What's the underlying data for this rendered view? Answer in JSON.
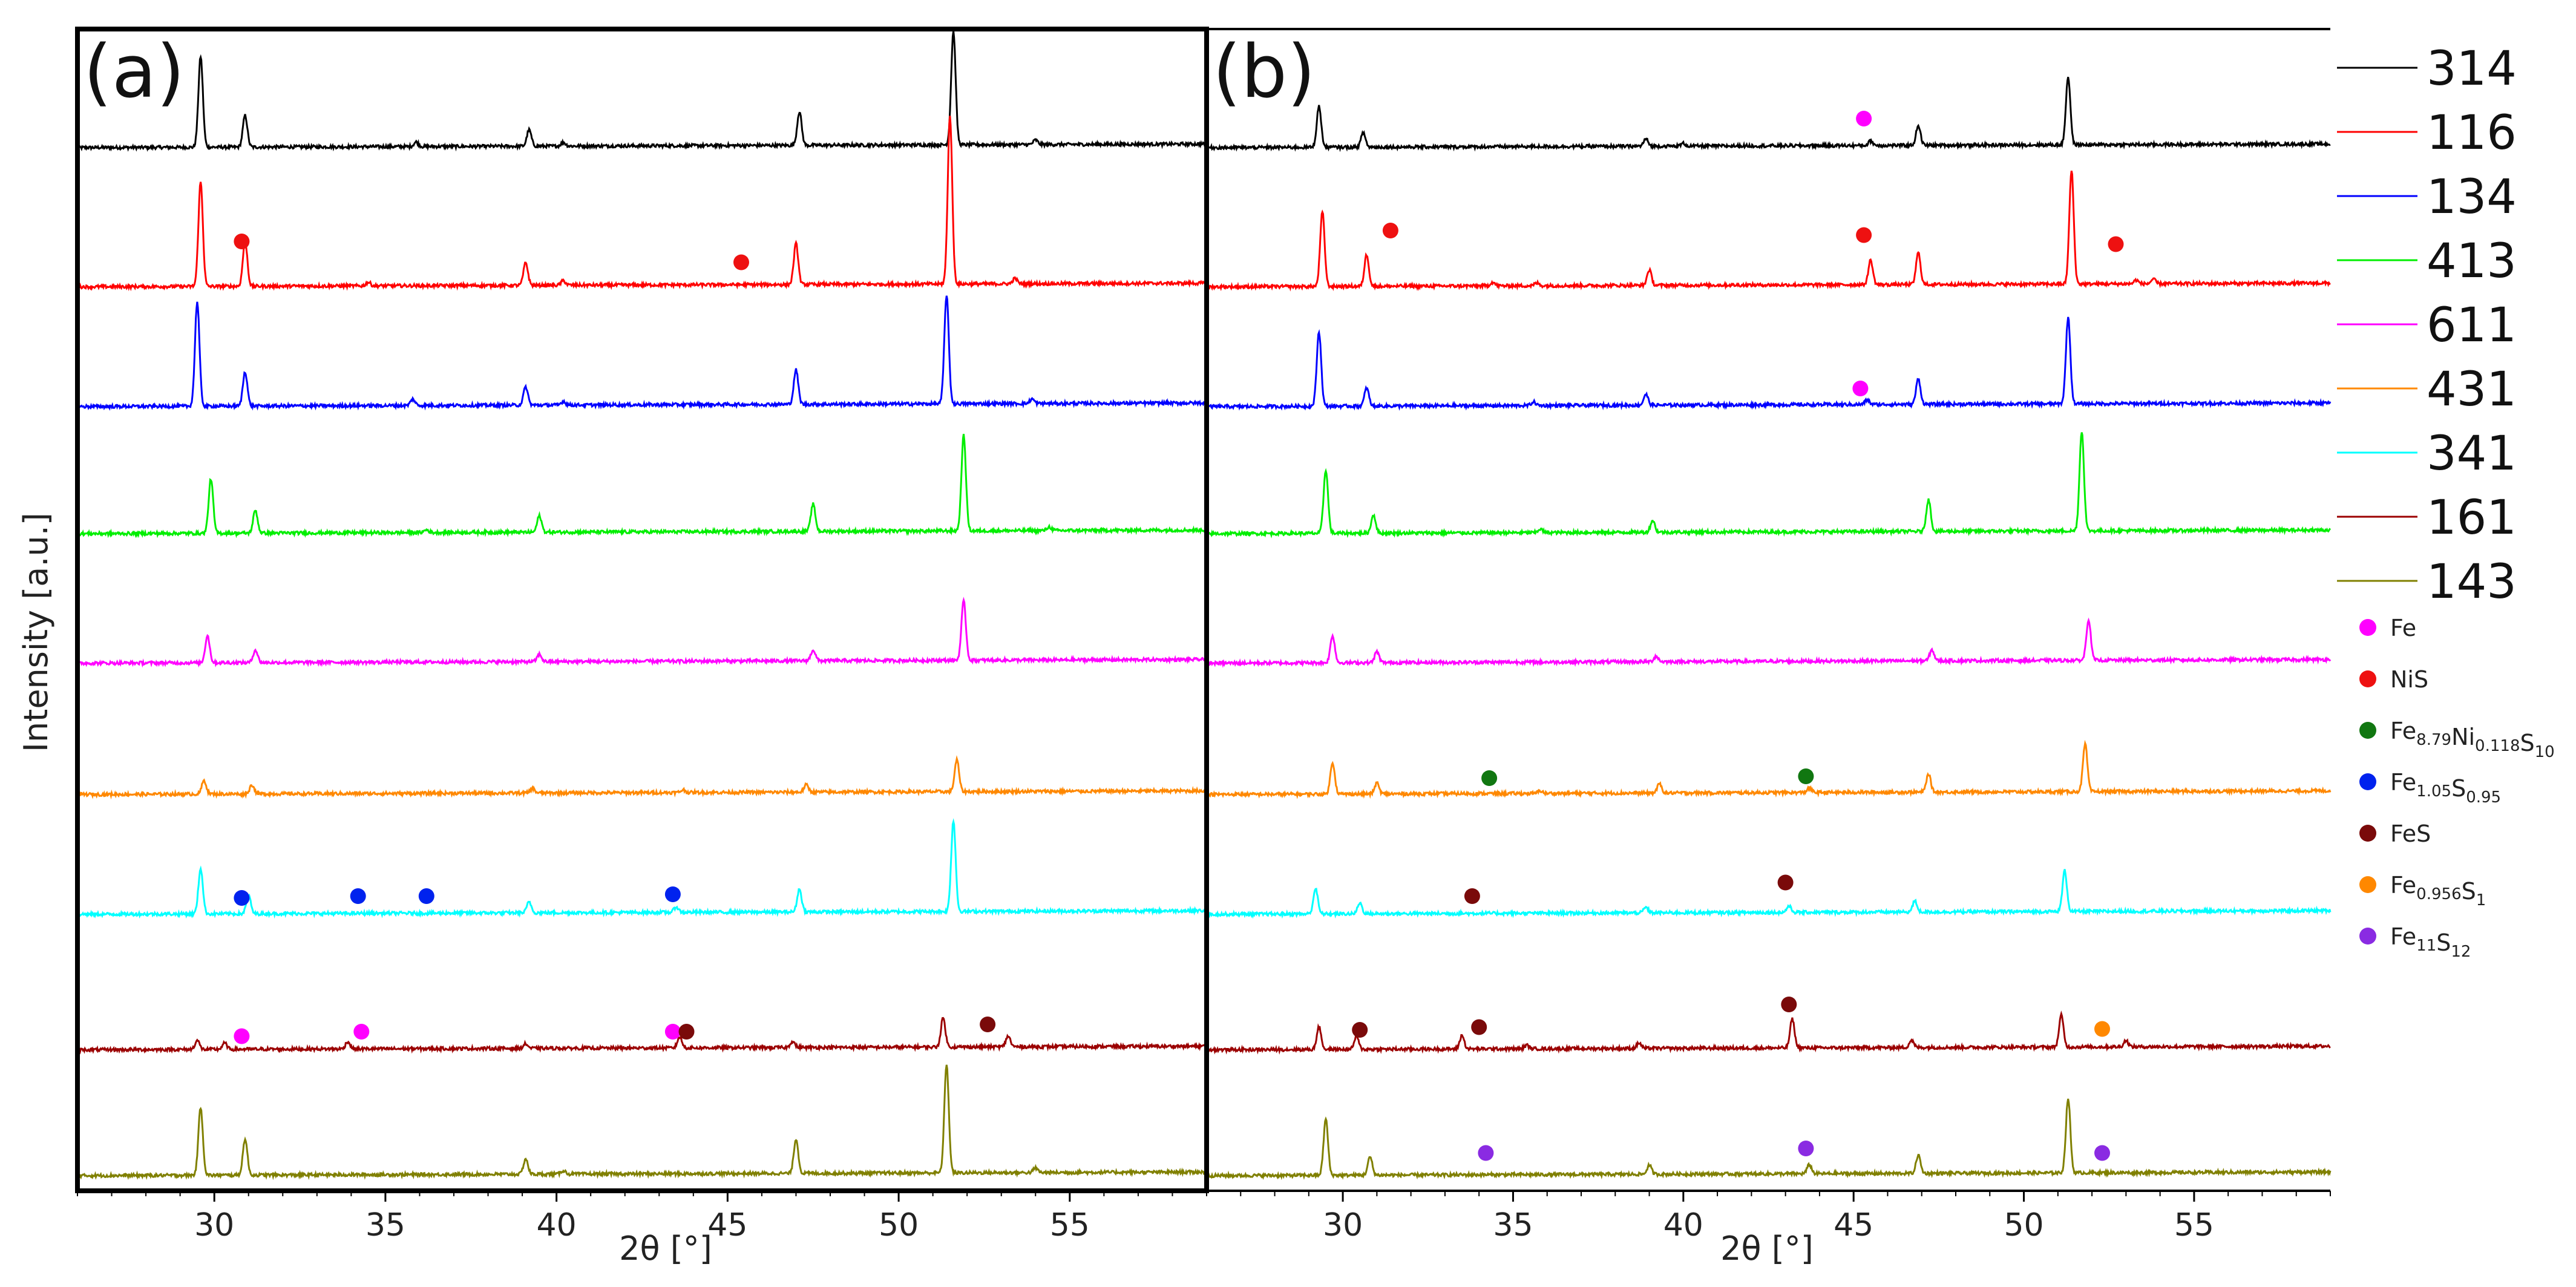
{
  "chart_data": {
    "type": "line",
    "title": "",
    "xlabel": "2θ [°]",
    "ylabel": "Intensity [a.u.]",
    "xlim": [
      26,
      59
    ],
    "xticks": [
      30,
      35,
      40,
      45,
      50,
      55
    ],
    "grid": false,
    "legend_placement": "right",
    "panels": [
      {
        "label": "(a)",
        "series": [
          {
            "name": "314",
            "color": "#000000",
            "peaks": [
              [
                29.6,
                1.0
              ],
              [
                30.9,
                0.35
              ],
              [
                35.9,
                0.05
              ],
              [
                39.2,
                0.18
              ],
              [
                40.2,
                0.04
              ],
              [
                47.1,
                0.37
              ],
              [
                51.6,
                1.25
              ],
              [
                54.0,
                0.05
              ]
            ],
            "markers": []
          },
          {
            "name": "116",
            "color": "#ff0000",
            "peaks": [
              [
                29.6,
                1.15
              ],
              [
                30.9,
                0.5
              ],
              [
                34.5,
                0.04
              ],
              [
                39.1,
                0.25
              ],
              [
                40.2,
                0.05
              ],
              [
                47.0,
                0.45
              ],
              [
                51.5,
                1.85
              ],
              [
                53.4,
                0.06
              ]
            ],
            "markers": [
              {
                "x": 30.8,
                "phase": "NiS",
                "height": 0.5
              },
              {
                "x": 45.4,
                "phase": "NiS",
                "height": 0.27
              }
            ]
          },
          {
            "name": "134",
            "color": "#0000ff",
            "peaks": [
              [
                29.5,
                1.15
              ],
              [
                30.9,
                0.38
              ],
              [
                35.8,
                0.07
              ],
              [
                39.1,
                0.2
              ],
              [
                40.2,
                0.04
              ],
              [
                47.0,
                0.38
              ],
              [
                51.4,
                1.2
              ],
              [
                53.9,
                0.05
              ]
            ],
            "markers": []
          },
          {
            "name": "413",
            "color": "#00ee00",
            "peaks": [
              [
                29.9,
                0.6
              ],
              [
                31.2,
                0.25
              ],
              [
                36.2,
                0.03
              ],
              [
                39.5,
                0.18
              ],
              [
                47.5,
                0.3
              ],
              [
                51.9,
                1.05
              ],
              [
                54.4,
                0.04
              ]
            ],
            "markers": []
          },
          {
            "name": "611",
            "color": "#ff00ff",
            "peaks": [
              [
                29.8,
                0.3
              ],
              [
                31.2,
                0.14
              ],
              [
                39.5,
                0.08
              ],
              [
                47.5,
                0.12
              ],
              [
                51.9,
                0.65
              ]
            ],
            "markers": []
          },
          {
            "name": "431",
            "color": "#ff8800",
            "peaks": [
              [
                29.7,
                0.15
              ],
              [
                31.1,
                0.1
              ],
              [
                39.3,
                0.05
              ],
              [
                43.7,
                0.03
              ],
              [
                47.3,
                0.08
              ],
              [
                51.7,
                0.35
              ]
            ],
            "markers": []
          },
          {
            "name": "341",
            "color": "#00ffff",
            "peaks": [
              [
                29.6,
                0.5
              ],
              [
                31.0,
                0.2
              ],
              [
                39.2,
                0.12
              ],
              [
                43.5,
                0.06
              ],
              [
                47.1,
                0.25
              ],
              [
                51.6,
                1.0
              ]
            ],
            "markers": [
              {
                "x": 30.8,
                "phase": "Fe1.05S0.95",
                "height": 0.18
              },
              {
                "x": 34.2,
                "phase": "Fe1.05S0.95",
                "height": 0.2
              },
              {
                "x": 36.2,
                "phase": "Fe1.05S0.95",
                "height": 0.2
              },
              {
                "x": 43.4,
                "phase": "Fe1.05S0.95",
                "height": 0.22
              }
            ]
          },
          {
            "name": "161",
            "color": "#9b0000",
            "peaks": [
              [
                29.5,
                0.1
              ],
              [
                30.3,
                0.07
              ],
              [
                33.9,
                0.08
              ],
              [
                39.1,
                0.05
              ],
              [
                43.6,
                0.12
              ],
              [
                46.9,
                0.07
              ],
              [
                51.3,
                0.32
              ],
              [
                53.2,
                0.12
              ]
            ],
            "markers": [
              {
                "x": 30.8,
                "phase": "Fe",
                "height": 0.15
              },
              {
                "x": 34.3,
                "phase": "Fe",
                "height": 0.2
              },
              {
                "x": 43.4,
                "phase": "Fe",
                "height": 0.2
              },
              {
                "x": 43.8,
                "phase": "FeS",
                "height": 0.2
              },
              {
                "x": 52.6,
                "phase": "FeS",
                "height": 0.28
              }
            ]
          },
          {
            "name": "143",
            "color": "#808000",
            "peaks": [
              [
                29.6,
                0.75
              ],
              [
                30.9,
                0.4
              ],
              [
                39.1,
                0.17
              ],
              [
                40.2,
                0.04
              ],
              [
                47.0,
                0.38
              ],
              [
                51.4,
                1.2
              ],
              [
                54.0,
                0.05
              ]
            ],
            "markers": []
          }
        ]
      },
      {
        "label": "(b)",
        "series": [
          {
            "name": "314",
            "color": "#000000",
            "peaks": [
              [
                29.3,
                0.45
              ],
              [
                30.6,
                0.16
              ],
              [
                38.9,
                0.08
              ],
              [
                40.0,
                0.03
              ],
              [
                45.5,
                0.05
              ],
              [
                46.9,
                0.22
              ],
              [
                51.3,
                0.75
              ]
            ],
            "markers": [
              {
                "x": 45.3,
                "phase": "Fe",
                "height": 0.32
              }
            ]
          },
          {
            "name": "116",
            "color": "#ff0000",
            "peaks": [
              [
                29.4,
                0.82
              ],
              [
                30.7,
                0.35
              ],
              [
                34.4,
                0.04
              ],
              [
                35.7,
                0.03
              ],
              [
                39.0,
                0.17
              ],
              [
                45.5,
                0.27
              ],
              [
                46.9,
                0.35
              ],
              [
                51.4,
                1.25
              ],
              [
                53.3,
                0.04
              ],
              [
                53.8,
                0.05
              ]
            ],
            "markers": [
              {
                "x": 31.4,
                "phase": "NiS",
                "height": 0.62
              },
              {
                "x": 45.3,
                "phase": "NiS",
                "height": 0.57
              },
              {
                "x": 52.7,
                "phase": "NiS",
                "height": 0.47
              }
            ]
          },
          {
            "name": "134",
            "color": "#0000ff",
            "peaks": [
              [
                29.3,
                0.82
              ],
              [
                30.7,
                0.2
              ],
              [
                35.6,
                0.04
              ],
              [
                38.9,
                0.12
              ],
              [
                45.4,
                0.05
              ],
              [
                46.9,
                0.28
              ],
              [
                51.3,
                0.95
              ]
            ],
            "markers": [
              {
                "x": 45.2,
                "phase": "Fe",
                "height": 0.2
              }
            ]
          },
          {
            "name": "413",
            "color": "#00ee00",
            "peaks": [
              [
                29.5,
                0.7
              ],
              [
                30.9,
                0.2
              ],
              [
                35.8,
                0.04
              ],
              [
                39.1,
                0.13
              ],
              [
                47.2,
                0.35
              ],
              [
                51.7,
                1.1
              ]
            ],
            "markers": []
          },
          {
            "name": "611",
            "color": "#ff00ff",
            "peaks": [
              [
                29.7,
                0.3
              ],
              [
                31.0,
                0.12
              ],
              [
                39.2,
                0.06
              ],
              [
                47.3,
                0.12
              ],
              [
                51.9,
                0.45
              ]
            ],
            "markers": []
          },
          {
            "name": "431",
            "color": "#ff8800",
            "peaks": [
              [
                29.7,
                0.35
              ],
              [
                31.0,
                0.12
              ],
              [
                35.8,
                0.03
              ],
              [
                39.3,
                0.1
              ],
              [
                43.7,
                0.05
              ],
              [
                47.2,
                0.2
              ],
              [
                51.8,
                0.52
              ]
            ],
            "markers": [
              {
                "x": 34.3,
                "phase": "Fe8.79Ni0.118S10",
                "height": 0.18
              },
              {
                "x": 43.6,
                "phase": "Fe8.79Ni0.118S10",
                "height": 0.2
              }
            ]
          },
          {
            "name": "341",
            "color": "#00ffff",
            "peaks": [
              [
                29.2,
                0.28
              ],
              [
                30.5,
                0.12
              ],
              [
                38.9,
                0.06
              ],
              [
                43.1,
                0.07
              ],
              [
                46.8,
                0.12
              ],
              [
                51.2,
                0.45
              ]
            ],
            "markers": [
              {
                "x": 33.8,
                "phase": "FeS",
                "height": 0.2
              },
              {
                "x": 43.0,
                "phase": "FeS",
                "height": 0.35
              }
            ]
          },
          {
            "name": "161",
            "color": "#9b0000",
            "peaks": [
              [
                29.3,
                0.25
              ],
              [
                30.4,
                0.14
              ],
              [
                33.5,
                0.15
              ],
              [
                35.4,
                0.04
              ],
              [
                38.7,
                0.06
              ],
              [
                43.2,
                0.32
              ],
              [
                46.7,
                0.08
              ],
              [
                51.1,
                0.35
              ],
              [
                53.0,
                0.07
              ]
            ],
            "markers": [
              {
                "x": 30.5,
                "phase": "FeS",
                "height": 0.22
              },
              {
                "x": 34.0,
                "phase": "FeS",
                "height": 0.25
              },
              {
                "x": 43.1,
                "phase": "FeS",
                "height": 0.5
              },
              {
                "x": 52.3,
                "phase": "Fe0.956S1",
                "height": 0.23
              }
            ]
          },
          {
            "name": "143",
            "color": "#808000",
            "peaks": [
              [
                29.5,
                0.62
              ],
              [
                30.8,
                0.2
              ],
              [
                39.0,
                0.1
              ],
              [
                43.7,
                0.1
              ],
              [
                46.9,
                0.2
              ],
              [
                51.3,
                0.82
              ]
            ],
            "markers": [
              {
                "x": 34.2,
                "phase": "Fe11S12",
                "height": 0.25
              },
              {
                "x": 43.6,
                "phase": "Fe11S12",
                "height": 0.3
              },
              {
                "x": 52.3,
                "phase": "Fe11S12",
                "height": 0.25
              }
            ]
          }
        ]
      }
    ],
    "sample_legend": [
      "314",
      "116",
      "134",
      "413",
      "611",
      "431",
      "341",
      "161",
      "143"
    ],
    "sample_colors": [
      "#000000",
      "#ff0000",
      "#0000ff",
      "#00ee00",
      "#ff00ff",
      "#ff8800",
      "#00ffff",
      "#9b0000",
      "#808000"
    ],
    "phase_legend": [
      {
        "key": "Fe",
        "color": "#ff00ff",
        "parts": [
          {
            "t": "Fe"
          }
        ]
      },
      {
        "key": "NiS",
        "color": "#ee1111",
        "parts": [
          {
            "t": "NiS"
          }
        ]
      },
      {
        "key": "Fe8.79Ni0.118S10",
        "color": "#117711",
        "parts": [
          {
            "t": "Fe"
          },
          {
            "t": "8.79",
            "sub": true
          },
          {
            "t": "Ni"
          },
          {
            "t": "0.118",
            "sub": true
          },
          {
            "t": "S"
          },
          {
            "t": "10",
            "sub": true
          }
        ]
      },
      {
        "key": "Fe1.05S0.95",
        "color": "#0022ee",
        "parts": [
          {
            "t": "Fe"
          },
          {
            "t": "1.05",
            "sub": true
          },
          {
            "t": "S"
          },
          {
            "t": "0.95",
            "sub": true
          }
        ]
      },
      {
        "key": "FeS",
        "color": "#7a0a0a",
        "parts": [
          {
            "t": "FeS"
          }
        ]
      },
      {
        "key": "Fe0.956S1",
        "color": "#ff8800",
        "parts": [
          {
            "t": "Fe"
          },
          {
            "t": "0.956",
            "sub": true
          },
          {
            "t": "S"
          },
          {
            "t": "1",
            "sub": true
          }
        ]
      },
      {
        "key": "Fe11S12",
        "color": "#8a2be2",
        "parts": [
          {
            "t": "Fe"
          },
          {
            "t": "11",
            "sub": true
          },
          {
            "t": "S"
          },
          {
            "t": "12",
            "sub": true
          }
        ]
      }
    ]
  }
}
